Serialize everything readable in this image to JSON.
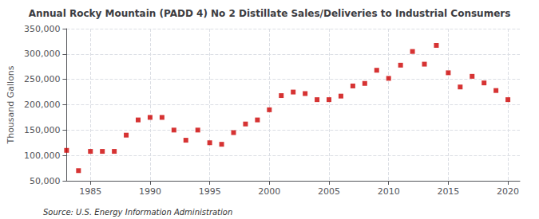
{
  "chart_data": {
    "type": "scatter",
    "title": "Annual Rocky Mountain (PADD 4) No 2 Distillate Sales/Deliveries to Industrial Consumers",
    "ylabel": "Thousand Gallons",
    "source": "Source: U.S. Energy Information Administration",
    "x": [
      1983,
      1984,
      1985,
      1986,
      1987,
      1988,
      1989,
      1990,
      1991,
      1992,
      1993,
      1994,
      1995,
      1996,
      1997,
      1998,
      1999,
      2000,
      2001,
      2002,
      2003,
      2004,
      2005,
      2006,
      2007,
      2008,
      2009,
      2010,
      2011,
      2012,
      2013,
      2014,
      2015,
      2016,
      2017,
      2018,
      2019,
      2020
    ],
    "values": [
      110000,
      70000,
      108000,
      108000,
      108000,
      140000,
      170000,
      175000,
      175000,
      150000,
      130000,
      150000,
      125000,
      122000,
      145000,
      162000,
      170000,
      190000,
      218000,
      225000,
      222000,
      210000,
      210000,
      217000,
      237000,
      242000,
      268000,
      252000,
      278000,
      305000,
      280000,
      317000,
      263000,
      235000,
      256000,
      243000,
      228000,
      210000
    ],
    "color": "#cc0000",
    "marker": "square",
    "xlim": [
      1983,
      2021
    ],
    "xticks": [
      1985,
      1990,
      1995,
      2000,
      2005,
      2010,
      2015,
      2020
    ],
    "ylim": [
      50000,
      350000
    ],
    "yticks": [
      {
        "value": 50000,
        "label": "50,000"
      },
      {
        "value": 100000,
        "label": "100,000"
      },
      {
        "value": 150000,
        "label": "150,000"
      },
      {
        "value": 200000,
        "label": "200,000"
      },
      {
        "value": 250000,
        "label": "250,000"
      },
      {
        "value": 300000,
        "label": "300,000"
      },
      {
        "value": 350000,
        "label": "350,000"
      }
    ],
    "grid": true
  }
}
